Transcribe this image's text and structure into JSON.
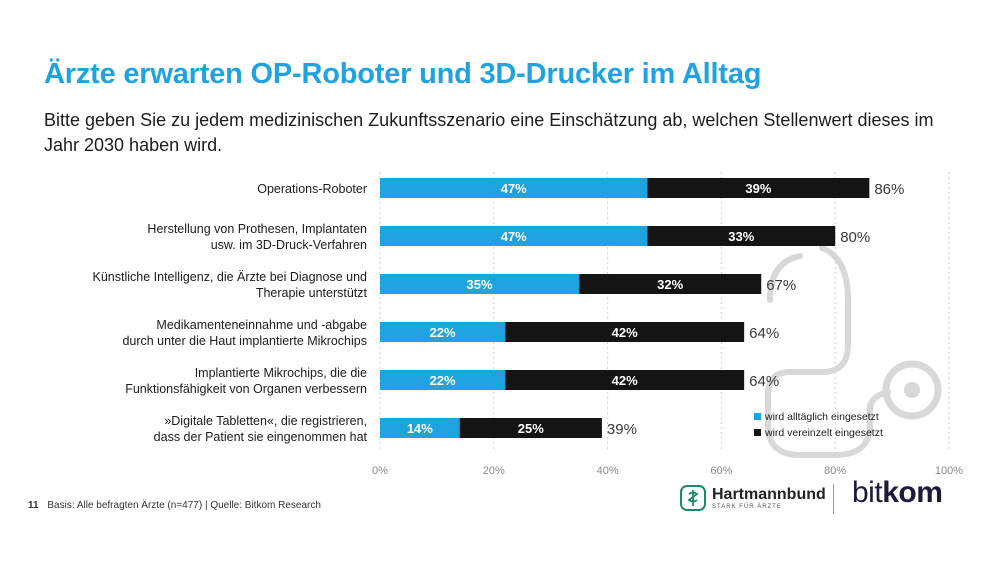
{
  "header": {
    "title": "Ärzte erwarten OP-Roboter und 3D-Drucker im Alltag",
    "subtitle": "Bitte geben Sie zu jedem medizinischen Zukunftsszenario eine Einschätzung ab, welchen Stellenwert dieses im Jahr 2030 haben wird."
  },
  "chart_data": {
    "type": "bar",
    "orientation": "horizontal",
    "stacked": true,
    "categories": [
      [
        "Operations-Roboter"
      ],
      [
        "Herstellung von Prothesen, Implantaten",
        "usw. im 3D-Druck-Verfahren"
      ],
      [
        "Künstliche Intelligenz, die Ärzte bei Diagnose und",
        "Therapie unterstützt"
      ],
      [
        "Medikamenteneinnahme und -abgabe",
        "durch unter die Haut implantierte Mikrochips"
      ],
      [
        "Implantierte Mikrochips, die die",
        "Funktionsfähigkeit von Organen verbessern"
      ],
      [
        "»Digitale Tabletten«, die registrieren,",
        "dass der Patient sie eingenommen hat"
      ]
    ],
    "series": [
      {
        "name": "wird alltäglich eingesetzt",
        "color": "#1fa3e0",
        "values": [
          47,
          47,
          35,
          22,
          22,
          14
        ]
      },
      {
        "name": "wird vereinzelt eingesetzt",
        "color": "#141414",
        "values": [
          39,
          33,
          32,
          42,
          42,
          25
        ]
      }
    ],
    "totals": [
      86,
      80,
      67,
      64,
      64,
      39
    ],
    "value_suffix": "%",
    "xlim": [
      0,
      100
    ],
    "xticks": [
      "0%",
      "20%",
      "40%",
      "60%",
      "80%",
      "100%"
    ],
    "grid": true,
    "legend": "bottom-right"
  },
  "footer": {
    "page_number": "11",
    "source": "Basis: Alle befragten Ärzte (n=477) | Quelle: Bitkom Research"
  },
  "logos": {
    "hartmannbund_name": "Hartmannbund",
    "hartmannbund_tag": "STARK FÜR ÄRZTE",
    "bitkom_bit": "bit",
    "bitkom_kom": "kom"
  },
  "colors": {
    "accent": "#1fa3e0",
    "dark": "#141414",
    "decoration": "#d6d6d6"
  }
}
